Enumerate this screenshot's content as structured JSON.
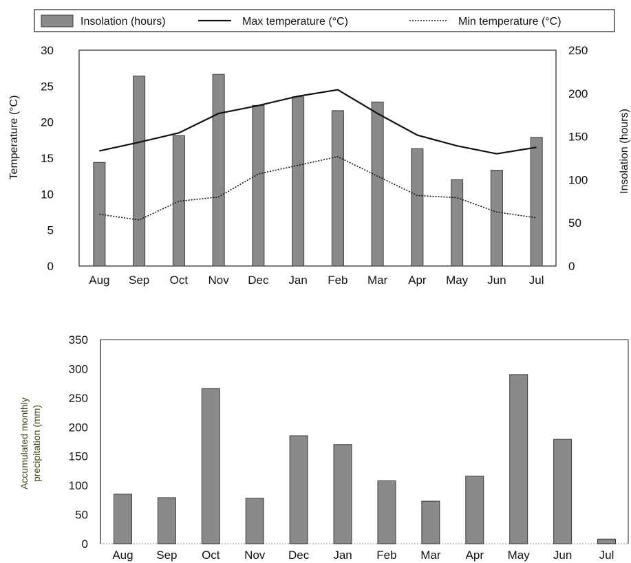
{
  "chart_data": [
    {
      "type": "bar",
      "legend": {
        "placement": "top",
        "entries": [
          "Insolation (hours)",
          "Max temperature (°C)",
          "Min temperature (°C)"
        ]
      },
      "categories": [
        "Aug",
        "Sep",
        "Oct",
        "Nov",
        "Dec",
        "Jan",
        "Feb",
        "Mar",
        "Apr",
        "May",
        "Jun",
        "Jul"
      ],
      "ylabel": "Temperature  (°C)",
      "y2label": "Insolation (hours)",
      "ylim": [
        0,
        30
      ],
      "y2lim": [
        0,
        250
      ],
      "yticks": [
        "0",
        "5",
        "10",
        "15",
        "20",
        "25",
        "30"
      ],
      "y2ticks": [
        "0",
        "50",
        "100",
        "150",
        "200",
        "250"
      ],
      "grid": false,
      "series": [
        {
          "name": "Insolation (hours)",
          "type": "bar",
          "axis": "right",
          "values": [
            120,
            220,
            151,
            222,
            186,
            196,
            180,
            190,
            136,
            100,
            111,
            149
          ]
        },
        {
          "name": "Max temperature (°C)",
          "type": "line",
          "style": "solid",
          "axis": "left",
          "values": [
            16.0,
            17.2,
            18.5,
            21.2,
            22.3,
            23.6,
            24.5,
            21.2,
            18.2,
            16.7,
            15.6,
            16.5
          ]
        },
        {
          "name": "Min temperature (°C)",
          "type": "line",
          "style": "dotted",
          "axis": "left",
          "values": [
            7.2,
            6.4,
            9.0,
            9.6,
            12.8,
            14.0,
            15.2,
            12.5,
            9.8,
            9.5,
            7.5,
            6.7
          ]
        }
      ]
    },
    {
      "type": "bar",
      "categories": [
        "Aug",
        "Sep",
        "Oct",
        "Nov",
        "Dec",
        "Jan",
        "Feb",
        "Mar",
        "Apr",
        "May",
        "Jun",
        "Jul"
      ],
      "ylabel_lines": [
        "Accumulated monthly",
        "precipitation (mm)"
      ],
      "ylim": [
        0,
        350
      ],
      "yticks": [
        "0",
        "50",
        "100",
        "150",
        "200",
        "250",
        "300",
        "350"
      ],
      "grid": false,
      "values": [
        85,
        79,
        266,
        78,
        185,
        170,
        108,
        73,
        116,
        290,
        179,
        8
      ]
    }
  ],
  "colors": {
    "bar_fill": "#8a8a8a",
    "bar_stroke": "#3a3a3a",
    "axis": "#222222",
    "precip_label": "#3b4a14"
  }
}
